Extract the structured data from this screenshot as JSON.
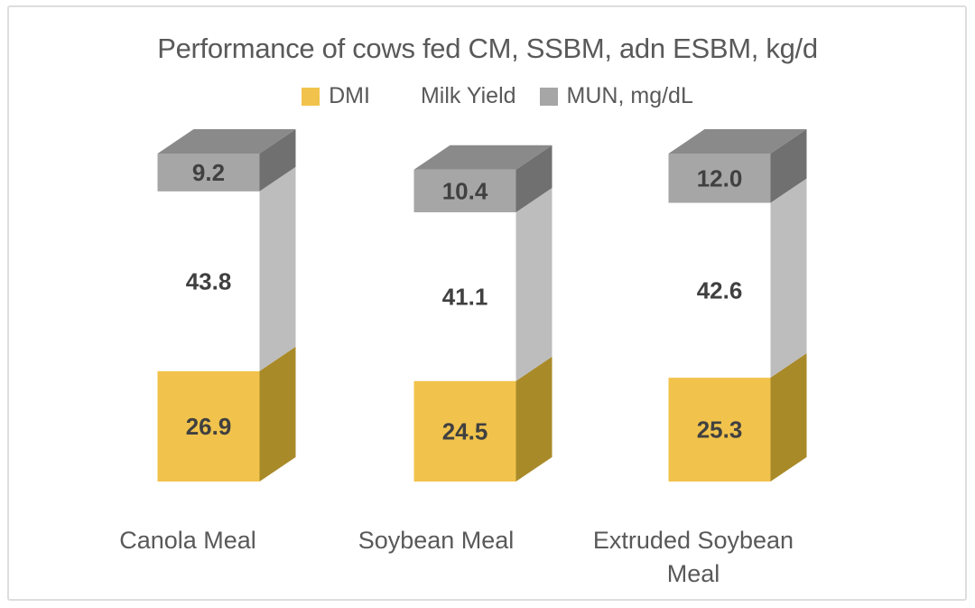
{
  "page": {
    "background": "#FFFFFF",
    "border_color": "#DEDEDE"
  },
  "title": {
    "text": "Performance of cows fed CM, SSBM, adn ESBM, kg/d",
    "color": "#595959"
  },
  "legend": {
    "position": "top",
    "text_color": "#595959",
    "items": [
      {
        "label": "DMI",
        "swatch": "#F1C34C"
      },
      {
        "label": "Milk Yield",
        "swatch": "#FFFFFF"
      },
      {
        "label": "MUN, mg/dL",
        "swatch": "#A6A6A6"
      }
    ]
  },
  "chart_data": {
    "type": "bar",
    "variant": "3d-stacked-column",
    "stacked": true,
    "title": "Performance of cows fed CM, SSBM, adn ESBM, kg/d",
    "categories": [
      "Canola Meal",
      "Soybean Meal",
      "Extruded Soybean Meal"
    ],
    "category_label_lines": [
      [
        "Canola Meal"
      ],
      [
        "Soybean Meal"
      ],
      [
        "Extruded Soybean",
        "Meal"
      ]
    ],
    "series": [
      {
        "name": "DMI",
        "values": [
          26.9,
          24.5,
          25.3
        ],
        "labels": [
          "26.9",
          "24.5",
          "25.3"
        ],
        "colors": {
          "front": "#F1C34C",
          "side": "#A98A29"
        }
      },
      {
        "name": "Milk Yield",
        "values": [
          43.8,
          41.1,
          42.6
        ],
        "labels": [
          "43.8",
          "41.1",
          "42.6"
        ],
        "colors": {
          "front": "#FFFFFF",
          "side": "#BDBDBD"
        }
      },
      {
        "name": "MUN, mg/dL",
        "values": [
          9.2,
          10.4,
          12.0
        ],
        "labels": [
          "9.2",
          "10.4",
          "12.0"
        ],
        "colors": {
          "front": "#A6A6A6",
          "side": "#707070",
          "top": "#8A8A8A"
        }
      }
    ],
    "totals": [
      79.9,
      76.0,
      79.9
    ],
    "data_labels_visible": true,
    "data_label_color": "#404040",
    "category_label_color": "#595959",
    "axes": {
      "visible": false,
      "gridlines": false
    },
    "legend_position": "top"
  }
}
